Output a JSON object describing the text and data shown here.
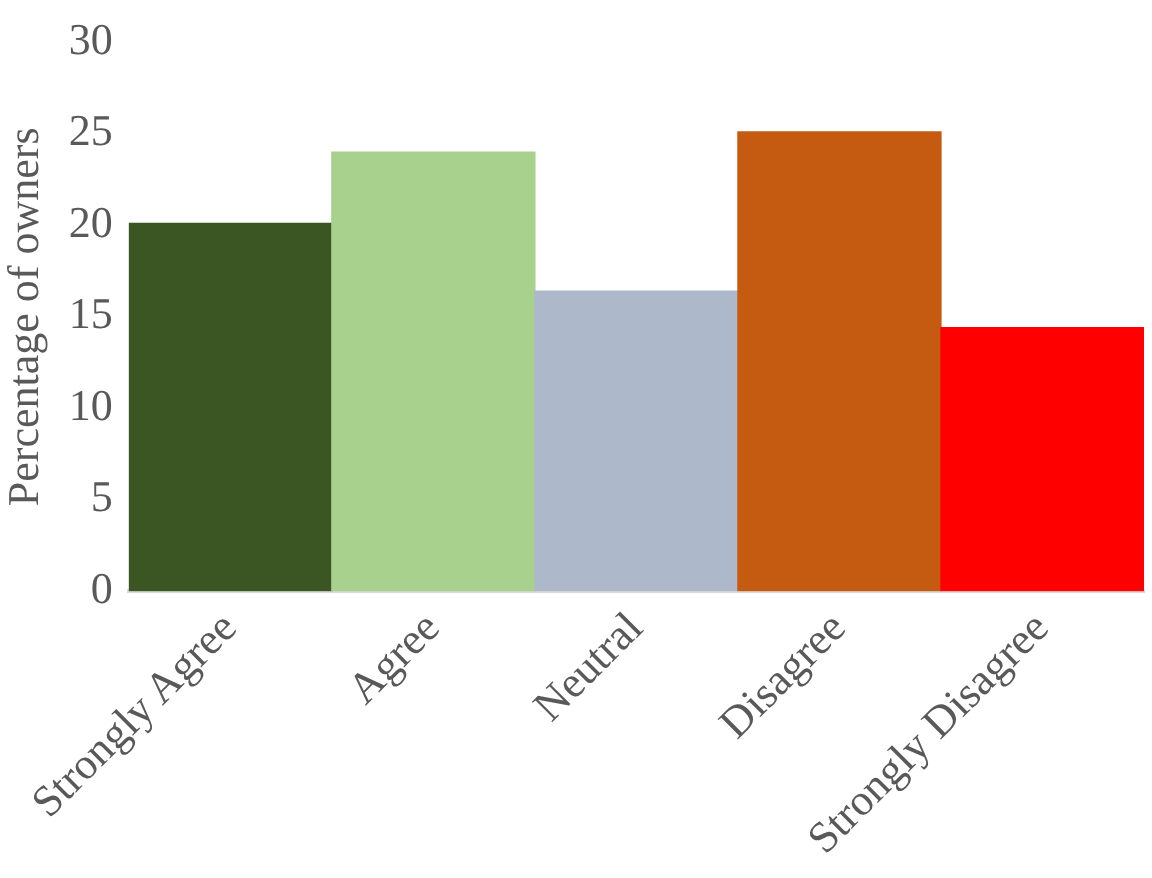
{
  "chart_data": {
    "type": "bar",
    "ylabel": "Percentage of owners",
    "categories": [
      "Strongly Agree",
      "Agree",
      "Neutral",
      "Disagree",
      "Strongly Disagree"
    ],
    "values": [
      20.1,
      24.0,
      16.4,
      25.1,
      14.4
    ],
    "colors": [
      "#3b5623",
      "#a9d18e",
      "#adb9ca",
      "#c55a11",
      "#ff0000"
    ],
    "ylim": [
      0,
      30
    ],
    "yticks": [
      0,
      5,
      10,
      15,
      20,
      25,
      30
    ],
    "grid": false,
    "legend": false
  }
}
